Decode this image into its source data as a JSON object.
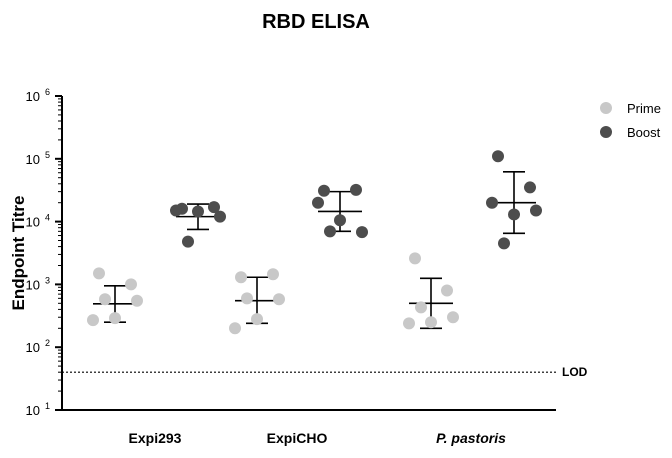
{
  "chart_data": {
    "type": "scatter",
    "title": "RBD ELISA",
    "ylabel": "Endpoint Titre",
    "xlabel": "",
    "yscale": "log",
    "ylim": [
      10,
      1000000
    ],
    "yticks": [
      {
        "base": "10",
        "exp": "1",
        "value": 10
      },
      {
        "base": "10",
        "exp": "2",
        "value": 100
      },
      {
        "base": "10",
        "exp": "3",
        "value": 1000
      },
      {
        "base": "10",
        "exp": "4",
        "value": 10000
      },
      {
        "base": "10",
        "exp": "5",
        "value": 100000
      },
      {
        "base": "10",
        "exp": "6",
        "value": 1000000
      }
    ],
    "categories": [
      {
        "label": "Expi293",
        "italic": false
      },
      {
        "label": "ExpiCHO",
        "italic": false
      },
      {
        "label": "P. pastoris",
        "italic": true
      }
    ],
    "series": [
      {
        "name": "Prime",
        "color": "#c8c8c8",
        "groups": [
          {
            "values": [
              1500,
              1000,
              270,
              290,
              550,
              580
            ],
            "mean": 490,
            "err_low": 250,
            "err_high": 950
          },
          {
            "values": [
              1300,
              1450,
              200,
              280,
              580,
              600
            ],
            "mean": 550,
            "err_low": 240,
            "err_high": 1300
          },
          {
            "values": [
              2600,
              800,
              240,
              250,
              300,
              430
            ],
            "mean": 500,
            "err_low": 200,
            "err_high": 1250
          }
        ]
      },
      {
        "name": "Boost",
        "color": "#4d4d4d",
        "groups": [
          {
            "values": [
              16000,
              17000,
              15000,
              14500,
              12000,
              4800
            ],
            "mean": 12000,
            "err_low": 7500,
            "err_high": 19000
          },
          {
            "values": [
              31000,
              32000,
              20000,
              10500,
              6800,
              7000
            ],
            "mean": 14500,
            "err_low": 7000,
            "err_high": 30000
          },
          {
            "values": [
              110000,
              35000,
              20000,
              13000,
              15000,
              4500
            ],
            "mean": 20000,
            "err_low": 6500,
            "err_high": 62000
          }
        ]
      }
    ],
    "reference_line": {
      "label": "LOD",
      "value": 40,
      "style": "dotted"
    },
    "legend_position": "top-right",
    "grid": false
  }
}
